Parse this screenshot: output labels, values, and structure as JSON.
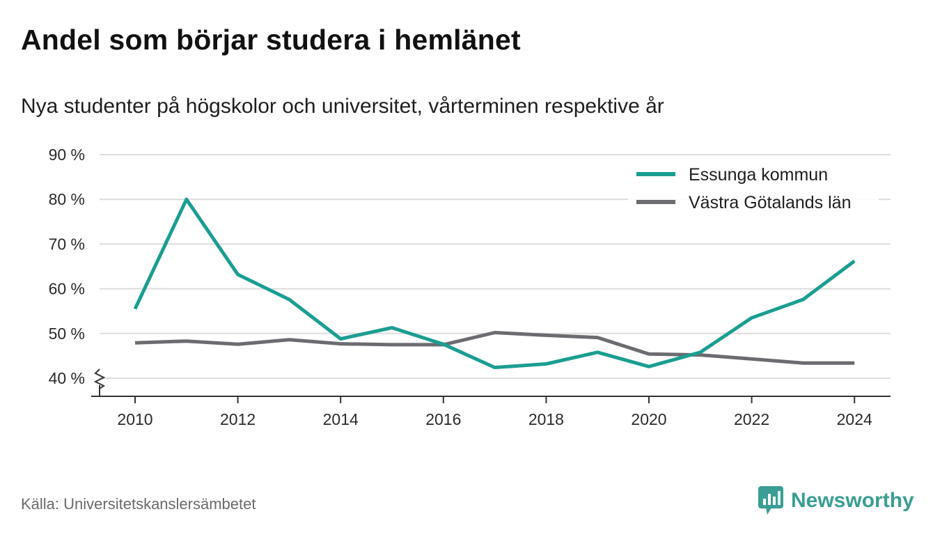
{
  "title": "Andel som börjar studera i hemlänet",
  "subtitle": "Nya studenter på högskolor och universitet, vårterminen respektive år",
  "source": "Källa: Universitetskanslersämbetet",
  "brand": {
    "name": "Newsworthy",
    "icon": "newsworthy-logo-icon",
    "color": "#3a9e94"
  },
  "chart_data": {
    "type": "line",
    "x": [
      2010,
      2011,
      2012,
      2013,
      2014,
      2015,
      2016,
      2017,
      2018,
      2019,
      2020,
      2021,
      2022,
      2023,
      2024
    ],
    "series": [
      {
        "name": "Essunga kommun",
        "color": "#1a9e91",
        "values": [
          55.5,
          80.0,
          63.2,
          57.6,
          48.8,
          51.3,
          47.6,
          42.4,
          43.2,
          45.8,
          42.6,
          45.8,
          53.5,
          57.6,
          66.2
        ]
      },
      {
        "name": "Västra Götalands län",
        "color": "#6b6b70",
        "values": [
          47.9,
          48.3,
          47.6,
          48.6,
          47.7,
          47.5,
          47.5,
          50.2,
          49.6,
          49.1,
          45.4,
          45.2,
          44.3,
          43.4,
          43.4
        ]
      }
    ],
    "yticks": [
      "90 %",
      "80 %",
      "70 %",
      "60 %",
      "50 %",
      "40 %"
    ],
    "ytick_values": [
      90,
      80,
      70,
      60,
      50,
      40
    ],
    "xticks": [
      "2010",
      "2012",
      "2014",
      "2016",
      "2018",
      "2020",
      "2022",
      "2024"
    ],
    "xtick_values": [
      2010,
      2012,
      2014,
      2016,
      2018,
      2020,
      2022,
      2024
    ],
    "xlim": [
      2009.3,
      2024.75
    ],
    "ylim": [
      36,
      90
    ],
    "y_axis_break": true,
    "grid": true,
    "legend_position": "top-right",
    "xlabel": "",
    "ylabel": ""
  }
}
